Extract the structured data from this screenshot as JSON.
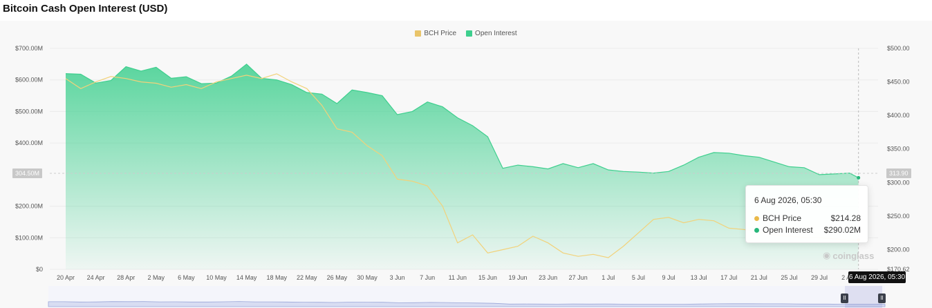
{
  "title": "Bitcoin Cash Open Interest (USD)",
  "legend": [
    {
      "name": "BCH Price",
      "color": "#e9c46a"
    },
    {
      "name": "Open Interest",
      "color": "#3ecf8e"
    }
  ],
  "tooltip": {
    "title": "6 Aug 2026, 05:30",
    "rows": [
      {
        "label": "BCH Price",
        "value": "$214.28",
        "color": "#e9b949"
      },
      {
        "label": "Open Interest",
        "value": "$290.02M",
        "color": "#27b67a"
      }
    ]
  },
  "crosshair_label": "6 Aug 2026, 05:30",
  "cursor_left_value": "304.50M",
  "cursor_right_value": "313.90",
  "watermark": "coinglass",
  "navigator_handles": {
    "left": "II",
    "right": "II"
  },
  "chart_data": {
    "type": "area",
    "title": "Bitcoin Cash Open Interest (USD)",
    "x_ticks": [
      "20 Apr",
      "24 Apr",
      "28 Apr",
      "2 May",
      "6 May",
      "10 May",
      "14 May",
      "18 May",
      "22 May",
      "26 May",
      "30 May",
      "3 Jun",
      "7 Jun",
      "11 Jun",
      "15 Jun",
      "19 Jun",
      "23 Jun",
      "27 Jun",
      "1 Jul",
      "5 Jul",
      "9 Jul",
      "13 Jul",
      "17 Jul",
      "21 Jul",
      "25 Jul",
      "29 Jul",
      "2 Aug"
    ],
    "y_left_ticks": [
      "$0",
      "$100.00M",
      "$200.00M",
      "$400.00M",
      "$500.00M",
      "$600.00M",
      "$700.00M"
    ],
    "y_right_ticks": [
      "$170.62",
      "$200.00",
      "$250.00",
      "$300.00",
      "$350.00",
      "$400.00",
      "$450.00",
      "$500.00"
    ],
    "y_left_range": [
      0,
      700
    ],
    "y_right_range": [
      170.62,
      500
    ],
    "grid": true,
    "legend_position": "top-center",
    "series": [
      {
        "name": "Open Interest",
        "axis": "left",
        "unit": "M USD",
        "x": [
          0,
          0.5,
          1,
          1.5,
          2,
          2.5,
          3,
          3.5,
          4,
          4.5,
          5,
          5.5,
          6,
          6.5,
          7,
          7.5,
          8,
          8.5,
          9,
          9.5,
          10,
          10.5,
          11,
          11.5,
          12,
          12.5,
          13,
          13.5,
          14,
          14.5,
          15,
          15.5,
          16,
          16.5,
          17,
          17.5,
          18,
          18.5,
          19,
          19.5,
          20,
          20.5,
          21,
          21.5,
          22,
          22.5,
          23,
          23.5,
          24,
          24.5,
          25,
          25.5,
          26,
          26.3
        ],
        "values": [
          620,
          618,
          590,
          598,
          642,
          628,
          640,
          605,
          610,
          588,
          590,
          612,
          650,
          605,
          600,
          585,
          560,
          555,
          525,
          568,
          560,
          550,
          490,
          500,
          530,
          515,
          480,
          455,
          420,
          320,
          330,
          325,
          318,
          335,
          322,
          335,
          315,
          310,
          308,
          305,
          310,
          330,
          355,
          370,
          368,
          360,
          355,
          340,
          325,
          322,
          300,
          302,
          305,
          290
        ]
      },
      {
        "name": "BCH Price",
        "axis": "right",
        "unit": "USD",
        "x": [
          0,
          0.5,
          1,
          1.5,
          2,
          2.5,
          3,
          3.5,
          4,
          4.5,
          5,
          5.5,
          6,
          6.5,
          7,
          7.5,
          8,
          8.5,
          9,
          9.5,
          10,
          10.5,
          11,
          11.5,
          12,
          12.5,
          13,
          13.5,
          14,
          14.5,
          15,
          15.5,
          16,
          16.5,
          17,
          17.5,
          18,
          18.5,
          19,
          19.5,
          20,
          20.5,
          21,
          21.5,
          22,
          22.5,
          23,
          23.5,
          24,
          24.5,
          25,
          25.5,
          26,
          26.3
        ],
        "values": [
          455,
          440,
          450,
          458,
          455,
          450,
          448,
          442,
          446,
          440,
          450,
          455,
          460,
          455,
          462,
          450,
          440,
          415,
          380,
          375,
          355,
          340,
          305,
          302,
          295,
          265,
          210,
          222,
          195,
          200,
          205,
          220,
          210,
          195,
          190,
          193,
          188,
          205,
          225,
          245,
          248,
          240,
          245,
          243,
          232,
          230,
          226,
          222,
          220,
          218,
          218,
          216,
          214,
          214.28
        ]
      }
    ]
  }
}
